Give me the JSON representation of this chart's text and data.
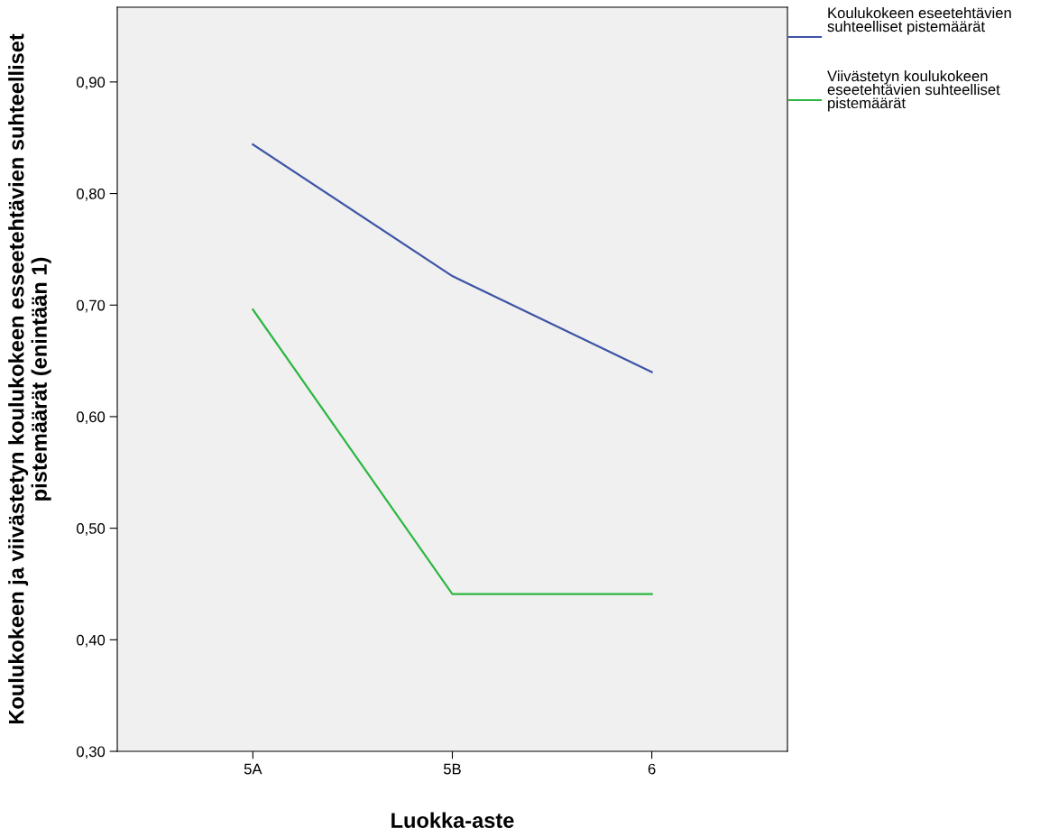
{
  "chart_data": {
    "type": "line",
    "xlabel": "Luokka-aste",
    "ylabel": "Koulukokeen ja viivästetyn koulukokeen esseetehtävien suhteelliset pistemäärät (enintään 1)",
    "categories": [
      "5A",
      "5B",
      "6"
    ],
    "series": [
      {
        "name": "Koulukokeen eseetehtävien suhteelliset pistemäärät",
        "color": "#3e54a6",
        "values": [
          0.844,
          0.726,
          0.64
        ]
      },
      {
        "name": "Viivästetyn koulukokeen eseetehtävien suhteelliset pistemäärät",
        "color": "#2db742",
        "values": [
          0.696,
          0.441,
          0.441
        ]
      }
    ],
    "ylim": [
      0.3,
      0.967
    ],
    "yticks": [
      {
        "value": 0.3,
        "label": "0,30"
      },
      {
        "value": 0.4,
        "label": "0,40"
      },
      {
        "value": 0.5,
        "label": "0,50"
      },
      {
        "value": 0.6,
        "label": "0,60"
      },
      {
        "value": 0.7,
        "label": "0,70"
      },
      {
        "value": 0.8,
        "label": "0,80"
      },
      {
        "value": 0.9,
        "label": "0,90"
      }
    ],
    "grid": false,
    "legend": "right",
    "marker": "none",
    "line_style": "solid"
  }
}
